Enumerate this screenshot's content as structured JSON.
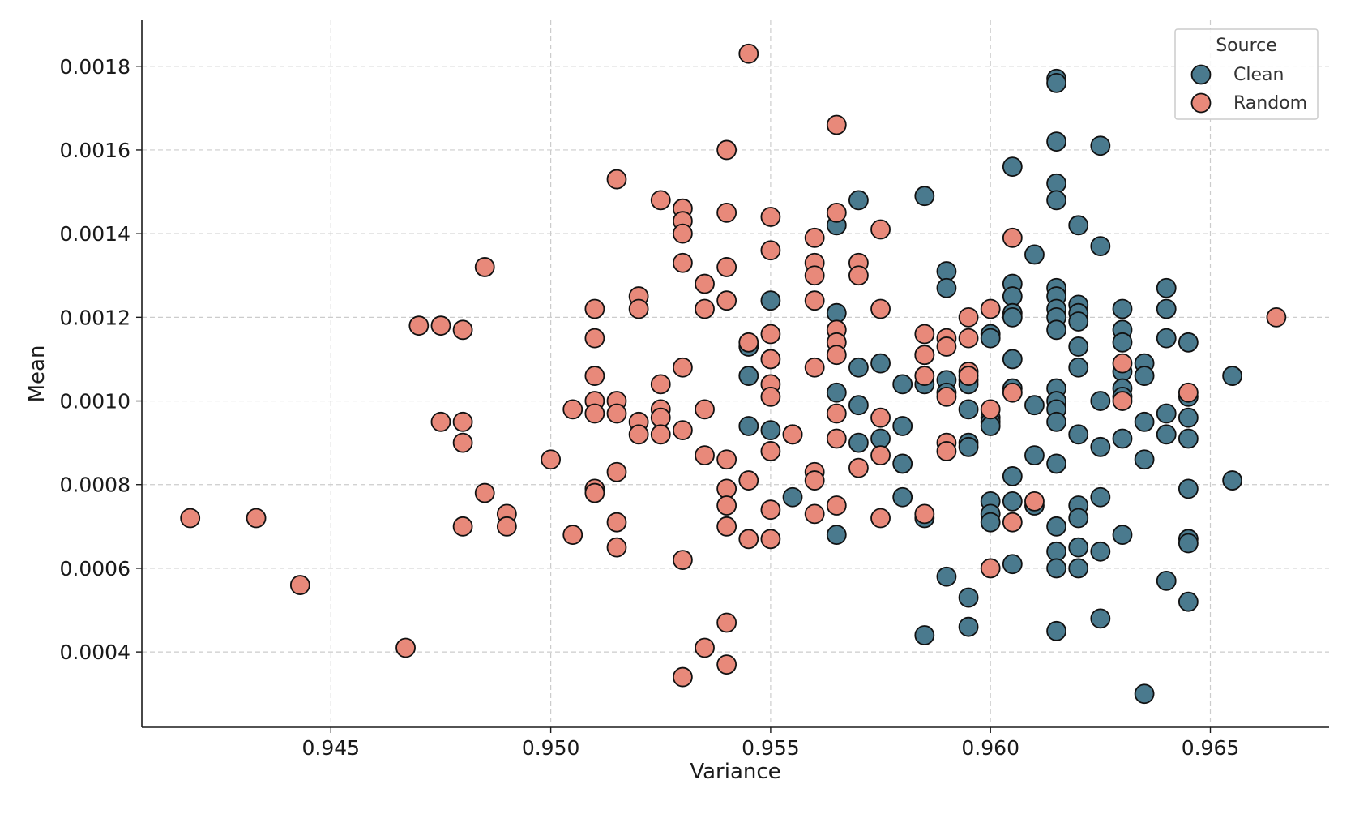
{
  "chart_data": {
    "type": "scatter",
    "title": "",
    "xlabel": "Variance",
    "ylabel": "Mean",
    "xlim": [
      0.9407,
      0.9677
    ],
    "ylim": [
      0.00022,
      0.00191
    ],
    "xticks": [
      0.945,
      0.95,
      0.955,
      0.96,
      0.965
    ],
    "xtick_labels": [
      "0.945",
      "0.950",
      "0.955",
      "0.960",
      "0.965"
    ],
    "yticks": [
      0.0004,
      0.0006,
      0.0008,
      0.001,
      0.0012,
      0.0014,
      0.0016,
      0.0018
    ],
    "ytick_labels": [
      "0.0004",
      "0.0006",
      "0.0008",
      "0.0010",
      "0.0012",
      "0.0014",
      "0.0016",
      "0.0018"
    ],
    "grid": true,
    "legend": {
      "title": "Source",
      "position": "top-right"
    },
    "series": [
      {
        "name": "Clean",
        "color": "#4a7a8e",
        "points": [
          [
            0.9615,
            0.00177
          ],
          [
            0.9615,
            0.00176
          ],
          [
            0.9615,
            0.00162
          ],
          [
            0.9625,
            0.00161
          ],
          [
            0.9605,
            0.00156
          ],
          [
            0.9615,
            0.00152
          ],
          [
            0.9585,
            0.00149
          ],
          [
            0.9615,
            0.00148
          ],
          [
            0.957,
            0.00148
          ],
          [
            0.9565,
            0.00142
          ],
          [
            0.962,
            0.00142
          ],
          [
            0.9625,
            0.00137
          ],
          [
            0.961,
            0.00135
          ],
          [
            0.959,
            0.00131
          ],
          [
            0.9605,
            0.00128
          ],
          [
            0.9615,
            0.00127
          ],
          [
            0.964,
            0.00127
          ],
          [
            0.959,
            0.00127
          ],
          [
            0.9615,
            0.00125
          ],
          [
            0.9605,
            0.00125
          ],
          [
            0.955,
            0.00124
          ],
          [
            0.962,
            0.00123
          ],
          [
            0.9615,
            0.00122
          ],
          [
            0.963,
            0.00122
          ],
          [
            0.964,
            0.00122
          ],
          [
            0.9605,
            0.00121
          ],
          [
            0.9565,
            0.00121
          ],
          [
            0.962,
            0.00121
          ],
          [
            0.9615,
            0.0012
          ],
          [
            0.9605,
            0.0012
          ],
          [
            0.962,
            0.00119
          ],
          [
            0.9615,
            0.00117
          ],
          [
            0.963,
            0.00117
          ],
          [
            0.96,
            0.00116
          ],
          [
            0.96,
            0.00115
          ],
          [
            0.964,
            0.00115
          ],
          [
            0.963,
            0.00114
          ],
          [
            0.9645,
            0.00114
          ],
          [
            0.962,
            0.00113
          ],
          [
            0.9545,
            0.00113
          ],
          [
            0.9585,
            0.00111
          ],
          [
            0.9605,
            0.0011
          ],
          [
            0.9635,
            0.00109
          ],
          [
            0.9575,
            0.00109
          ],
          [
            0.962,
            0.00108
          ],
          [
            0.957,
            0.00108
          ],
          [
            0.963,
            0.00107
          ],
          [
            0.9655,
            0.00106
          ],
          [
            0.9635,
            0.00106
          ],
          [
            0.9545,
            0.00106
          ],
          [
            0.9595,
            0.00105
          ],
          [
            0.959,
            0.00105
          ],
          [
            0.958,
            0.00104
          ],
          [
            0.9595,
            0.00104
          ],
          [
            0.9585,
            0.00104
          ],
          [
            0.9605,
            0.00103
          ],
          [
            0.963,
            0.00103
          ],
          [
            0.9615,
            0.00103
          ],
          [
            0.959,
            0.00102
          ],
          [
            0.9565,
            0.00102
          ],
          [
            0.963,
            0.00101
          ],
          [
            0.9645,
            0.00101
          ],
          [
            0.9615,
            0.001
          ],
          [
            0.9625,
            0.001
          ],
          [
            0.961,
            0.00099
          ],
          [
            0.957,
            0.00099
          ],
          [
            0.9615,
            0.00098
          ],
          [
            0.9595,
            0.00098
          ],
          [
            0.964,
            0.00097
          ],
          [
            0.96,
            0.00096
          ],
          [
            0.9645,
            0.00096
          ],
          [
            0.96,
            0.00095
          ],
          [
            0.9615,
            0.00095
          ],
          [
            0.9635,
            0.00095
          ],
          [
            0.96,
            0.00094
          ],
          [
            0.958,
            0.00094
          ],
          [
            0.9545,
            0.00094
          ],
          [
            0.955,
            0.00093
          ],
          [
            0.9555,
            0.00092
          ],
          [
            0.962,
            0.00092
          ],
          [
            0.964,
            0.00092
          ],
          [
            0.963,
            0.00091
          ],
          [
            0.9645,
            0.00091
          ],
          [
            0.9575,
            0.00091
          ],
          [
            0.9595,
            0.0009
          ],
          [
            0.957,
            0.0009
          ],
          [
            0.9595,
            0.00089
          ],
          [
            0.9625,
            0.00089
          ],
          [
            0.961,
            0.00087
          ],
          [
            0.9635,
            0.00086
          ],
          [
            0.9615,
            0.00085
          ],
          [
            0.958,
            0.00085
          ],
          [
            0.9605,
            0.00082
          ],
          [
            0.9655,
            0.00081
          ],
          [
            0.9645,
            0.00079
          ],
          [
            0.9555,
            0.00077
          ],
          [
            0.958,
            0.00077
          ],
          [
            0.9625,
            0.00077
          ],
          [
            0.96,
            0.00076
          ],
          [
            0.9605,
            0.00076
          ],
          [
            0.962,
            0.00075
          ],
          [
            0.961,
            0.00075
          ],
          [
            0.96,
            0.00073
          ],
          [
            0.962,
            0.00072
          ],
          [
            0.96,
            0.00071
          ],
          [
            0.9585,
            0.00072
          ],
          [
            0.9615,
            0.0007
          ],
          [
            0.963,
            0.00068
          ],
          [
            0.9565,
            0.00068
          ],
          [
            0.9645,
            0.00067
          ],
          [
            0.9645,
            0.00066
          ],
          [
            0.962,
            0.00065
          ],
          [
            0.9615,
            0.00064
          ],
          [
            0.9625,
            0.00064
          ],
          [
            0.9605,
            0.00061
          ],
          [
            0.9615,
            0.0006
          ],
          [
            0.962,
            0.0006
          ],
          [
            0.959,
            0.00058
          ],
          [
            0.964,
            0.00057
          ],
          [
            0.9595,
            0.00053
          ],
          [
            0.9645,
            0.00052
          ],
          [
            0.9625,
            0.00048
          ],
          [
            0.9595,
            0.00046
          ],
          [
            0.9615,
            0.00045
          ],
          [
            0.9585,
            0.00044
          ],
          [
            0.9635,
            0.0003
          ]
        ]
      },
      {
        "name": "Random",
        "color": "#e8897a",
        "points": [
          [
            0.9545,
            0.00183
          ],
          [
            0.9565,
            0.00166
          ],
          [
            0.954,
            0.0016
          ],
          [
            0.9515,
            0.00153
          ],
          [
            0.9525,
            0.00148
          ],
          [
            0.953,
            0.00146
          ],
          [
            0.9565,
            0.00145
          ],
          [
            0.954,
            0.00145
          ],
          [
            0.955,
            0.00144
          ],
          [
            0.953,
            0.00143
          ],
          [
            0.9575,
            0.00141
          ],
          [
            0.953,
            0.0014
          ],
          [
            0.956,
            0.00139
          ],
          [
            0.9605,
            0.00139
          ],
          [
            0.955,
            0.00136
          ],
          [
            0.956,
            0.00133
          ],
          [
            0.957,
            0.00133
          ],
          [
            0.953,
            0.00133
          ],
          [
            0.954,
            0.00132
          ],
          [
            0.9485,
            0.00132
          ],
          [
            0.956,
            0.0013
          ],
          [
            0.957,
            0.0013
          ],
          [
            0.9535,
            0.00128
          ],
          [
            0.952,
            0.00125
          ],
          [
            0.954,
            0.00124
          ],
          [
            0.956,
            0.00124
          ],
          [
            0.96,
            0.00122
          ],
          [
            0.9535,
            0.00122
          ],
          [
            0.9575,
            0.00122
          ],
          [
            0.951,
            0.00122
          ],
          [
            0.952,
            0.00122
          ],
          [
            0.9665,
            0.0012
          ],
          [
            0.9595,
            0.0012
          ],
          [
            0.9475,
            0.00118
          ],
          [
            0.947,
            0.00118
          ],
          [
            0.9565,
            0.00117
          ],
          [
            0.9585,
            0.00116
          ],
          [
            0.955,
            0.00116
          ],
          [
            0.948,
            0.00117
          ],
          [
            0.959,
            0.00115
          ],
          [
            0.9595,
            0.00115
          ],
          [
            0.951,
            0.00115
          ],
          [
            0.9565,
            0.00114
          ],
          [
            0.9545,
            0.00114
          ],
          [
            0.959,
            0.00113
          ],
          [
            0.9585,
            0.00111
          ],
          [
            0.9565,
            0.00111
          ],
          [
            0.955,
            0.0011
          ],
          [
            0.963,
            0.00109
          ],
          [
            0.953,
            0.00108
          ],
          [
            0.956,
            0.00108
          ],
          [
            0.9595,
            0.00107
          ],
          [
            0.9595,
            0.00106
          ],
          [
            0.9585,
            0.00106
          ],
          [
            0.951,
            0.00106
          ],
          [
            0.9525,
            0.00104
          ],
          [
            0.955,
            0.00104
          ],
          [
            0.9605,
            0.00102
          ],
          [
            0.9645,
            0.00102
          ],
          [
            0.959,
            0.00101
          ],
          [
            0.955,
            0.00101
          ],
          [
            0.951,
            0.001
          ],
          [
            0.9515,
            0.001
          ],
          [
            0.963,
            0.001
          ],
          [
            0.96,
            0.00098
          ],
          [
            0.9525,
            0.00098
          ],
          [
            0.9535,
            0.00098
          ],
          [
            0.9505,
            0.00098
          ],
          [
            0.9515,
            0.00097
          ],
          [
            0.9565,
            0.00097
          ],
          [
            0.951,
            0.00097
          ],
          [
            0.9575,
            0.00096
          ],
          [
            0.9525,
            0.00096
          ],
          [
            0.952,
            0.00095
          ],
          [
            0.9475,
            0.00095
          ],
          [
            0.948,
            0.00095
          ],
          [
            0.953,
            0.00093
          ],
          [
            0.9525,
            0.00092
          ],
          [
            0.952,
            0.00092
          ],
          [
            0.9555,
            0.00092
          ],
          [
            0.9565,
            0.00091
          ],
          [
            0.959,
            0.0009
          ],
          [
            0.948,
            0.0009
          ],
          [
            0.959,
            0.00088
          ],
          [
            0.955,
            0.00088
          ],
          [
            0.9535,
            0.00087
          ],
          [
            0.9575,
            0.00087
          ],
          [
            0.954,
            0.00086
          ],
          [
            0.95,
            0.00086
          ],
          [
            0.957,
            0.00084
          ],
          [
            0.956,
            0.00083
          ],
          [
            0.9515,
            0.00083
          ],
          [
            0.956,
            0.00081
          ],
          [
            0.9545,
            0.00081
          ],
          [
            0.951,
            0.00079
          ],
          [
            0.954,
            0.00079
          ],
          [
            0.951,
            0.00078
          ],
          [
            0.9485,
            0.00078
          ],
          [
            0.961,
            0.00076
          ],
          [
            0.9565,
            0.00075
          ],
          [
            0.954,
            0.00075
          ],
          [
            0.955,
            0.00074
          ],
          [
            0.9585,
            0.00073
          ],
          [
            0.956,
            0.00073
          ],
          [
            0.949,
            0.00073
          ],
          [
            0.9418,
            0.00072
          ],
          [
            0.9575,
            0.00072
          ],
          [
            0.9433,
            0.00072
          ],
          [
            0.9605,
            0.00071
          ],
          [
            0.9515,
            0.00071
          ],
          [
            0.948,
            0.0007
          ],
          [
            0.949,
            0.0007
          ],
          [
            0.954,
            0.0007
          ],
          [
            0.9505,
            0.00068
          ],
          [
            0.9545,
            0.00067
          ],
          [
            0.955,
            0.00067
          ],
          [
            0.9515,
            0.00065
          ],
          [
            0.953,
            0.00062
          ],
          [
            0.96,
            0.0006
          ],
          [
            0.9443,
            0.00056
          ],
          [
            0.954,
            0.00047
          ],
          [
            0.9467,
            0.00041
          ],
          [
            0.9535,
            0.00041
          ],
          [
            0.954,
            0.00037
          ],
          [
            0.953,
            0.00034
          ]
        ]
      }
    ]
  }
}
